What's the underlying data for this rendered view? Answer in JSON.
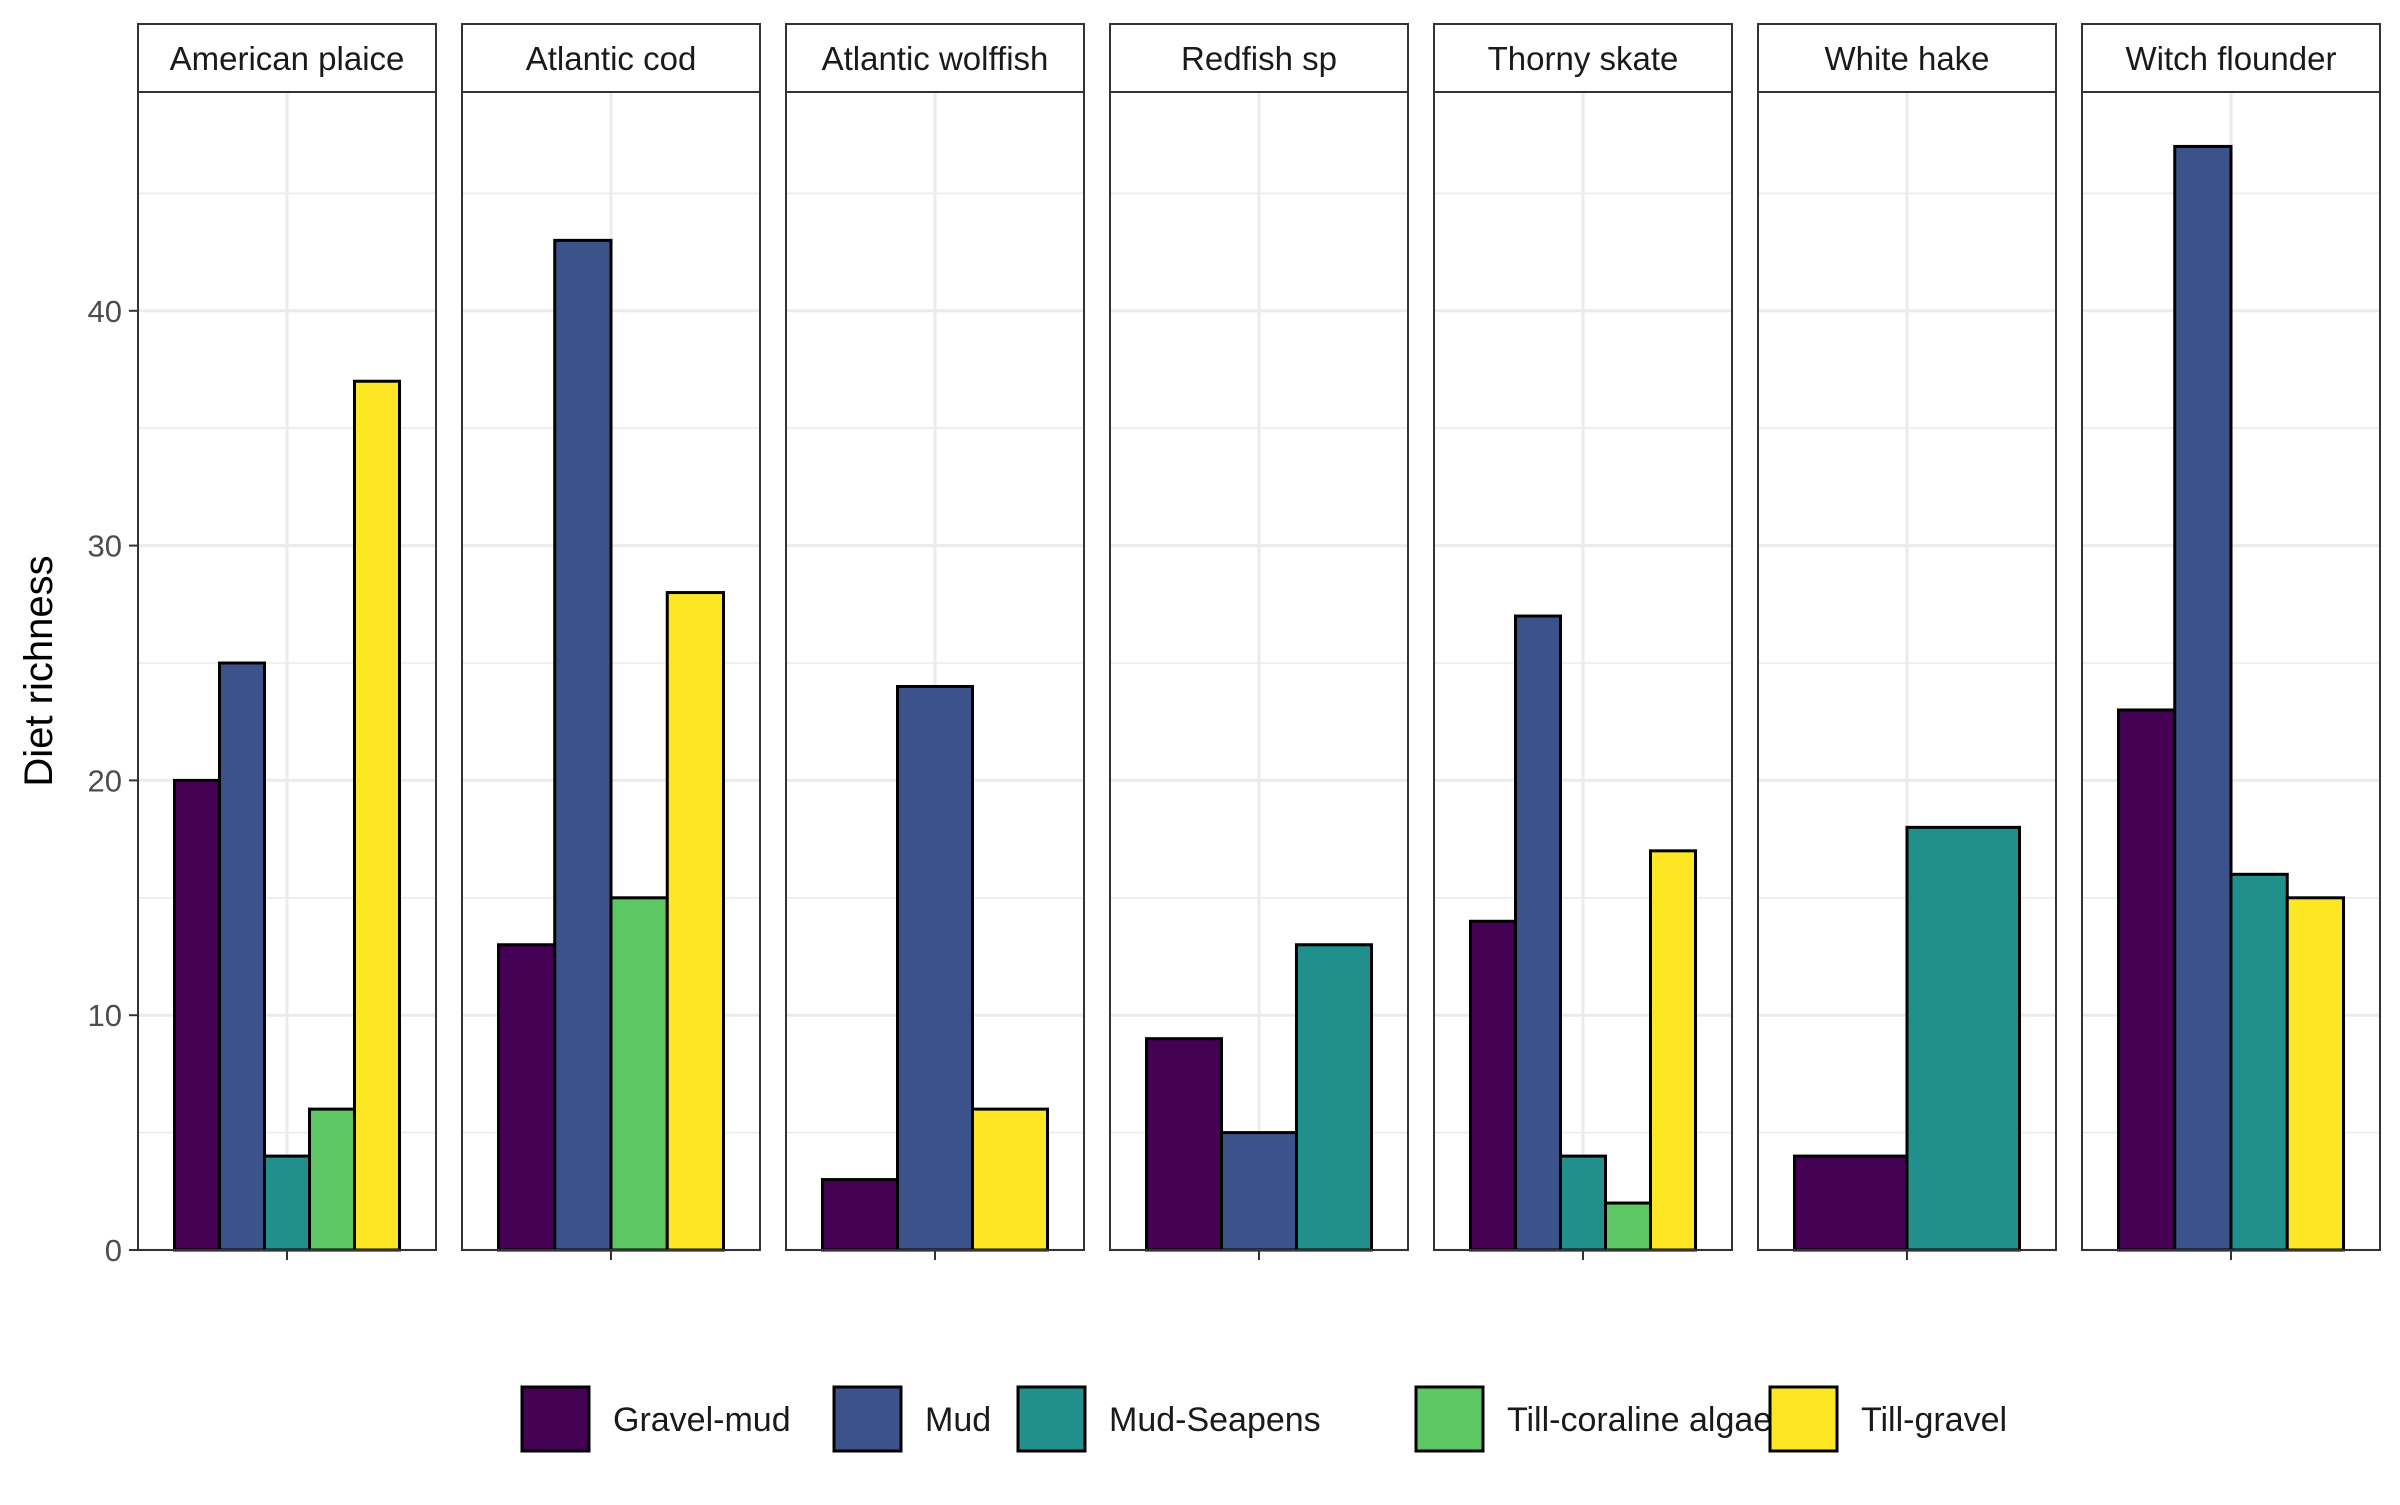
{
  "chart_data": {
    "type": "bar",
    "ylabel": "Diet richness",
    "xlabel": "",
    "ylim": [
      0,
      50
    ],
    "y_ticks": [
      0,
      10,
      20,
      30,
      40
    ],
    "grid": true,
    "legend_position": "bottom",
    "habitats": [
      {
        "name": "Gravel-mud",
        "color": "#440154"
      },
      {
        "name": "Mud",
        "color": "#3B528B"
      },
      {
        "name": "Mud-Seapens",
        "color": "#21908C"
      },
      {
        "name": "Till-coraline algae",
        "color": "#5DC863"
      },
      {
        "name": "Till-gravel",
        "color": "#FDE725"
      }
    ],
    "panels": [
      {
        "title": "American plaice",
        "bars": [
          {
            "habitat": "Gravel-mud",
            "value": 20
          },
          {
            "habitat": "Mud",
            "value": 25
          },
          {
            "habitat": "Mud-Seapens",
            "value": 4
          },
          {
            "habitat": "Till-coraline algae",
            "value": 6
          },
          {
            "habitat": "Till-gravel",
            "value": 37
          }
        ]
      },
      {
        "title": "Atlantic cod",
        "bars": [
          {
            "habitat": "Gravel-mud",
            "value": 13
          },
          {
            "habitat": "Mud",
            "value": 43
          },
          {
            "habitat": "Till-coraline algae",
            "value": 15
          },
          {
            "habitat": "Till-gravel",
            "value": 28
          }
        ]
      },
      {
        "title": "Atlantic wolffish",
        "bars": [
          {
            "habitat": "Gravel-mud",
            "value": 3
          },
          {
            "habitat": "Mud",
            "value": 24
          },
          {
            "habitat": "Till-gravel",
            "value": 6
          }
        ]
      },
      {
        "title": "Redfish sp",
        "bars": [
          {
            "habitat": "Gravel-mud",
            "value": 9
          },
          {
            "habitat": "Mud",
            "value": 5
          },
          {
            "habitat": "Mud-Seapens",
            "value": 13
          }
        ]
      },
      {
        "title": "Thorny skate",
        "bars": [
          {
            "habitat": "Gravel-mud",
            "value": 14
          },
          {
            "habitat": "Mud",
            "value": 27
          },
          {
            "habitat": "Mud-Seapens",
            "value": 4
          },
          {
            "habitat": "Till-coraline algae",
            "value": 2
          },
          {
            "habitat": "Till-gravel",
            "value": 17
          }
        ]
      },
      {
        "title": "White hake",
        "bars": [
          {
            "habitat": "Gravel-mud",
            "value": 4
          },
          {
            "habitat": "Mud-Seapens",
            "value": 18
          }
        ]
      },
      {
        "title": "Witch flounder",
        "bars": [
          {
            "habitat": "Gravel-mud",
            "value": 23
          },
          {
            "habitat": "Mud",
            "value": 47
          },
          {
            "habitat": "Mud-Seapens",
            "value": 16
          },
          {
            "habitat": "Till-gravel",
            "value": 15
          }
        ]
      }
    ]
  }
}
